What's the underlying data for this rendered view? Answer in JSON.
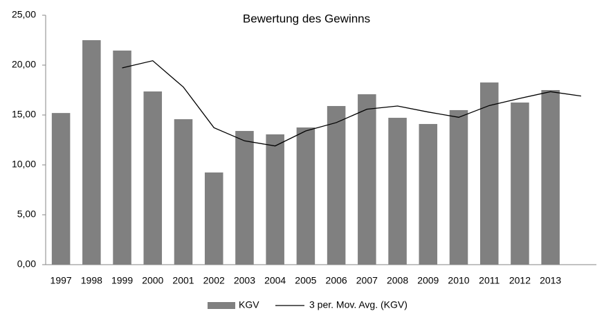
{
  "chart_data": {
    "type": "bar-line",
    "title": "Bewertung des Gewinns",
    "categories": [
      "1997",
      "1998",
      "1999",
      "2000",
      "2001",
      "2002",
      "2003",
      "2004",
      "2005",
      "2006",
      "2007",
      "2008",
      "2009",
      "2010",
      "2011",
      "2012",
      "2013",
      null
    ],
    "series": [
      {
        "name": "KGV",
        "type": "bar",
        "color": "#808080",
        "values": [
          15.2,
          22.5,
          21.46,
          17.36,
          14.58,
          9.24,
          13.4,
          13.06,
          13.75,
          15.9,
          17.08,
          14.72,
          14.1,
          15.49,
          18.26,
          16.25,
          17.5,
          null
        ]
      },
      {
        "name": "3 per. Mov. Avg. (KGV)",
        "type": "line",
        "color": "#000000",
        "values": [
          null,
          null,
          19.72,
          20.44,
          17.8,
          13.73,
          12.41,
          11.9,
          13.4,
          14.24,
          15.58,
          15.9,
          15.3,
          14.77,
          15.95,
          16.67,
          17.34,
          16.9
        ]
      }
    ],
    "ylim": [
      0,
      25
    ],
    "yticks": [
      {
        "value": 0,
        "label": "0,00"
      },
      {
        "value": 5,
        "label": "5,00"
      },
      {
        "value": 10,
        "label": "10,00"
      },
      {
        "value": 15,
        "label": "15,00"
      },
      {
        "value": 20,
        "label": "20,00"
      },
      {
        "value": 25,
        "label": "25,00"
      }
    ],
    "grid": false,
    "legend": "bottom"
  }
}
